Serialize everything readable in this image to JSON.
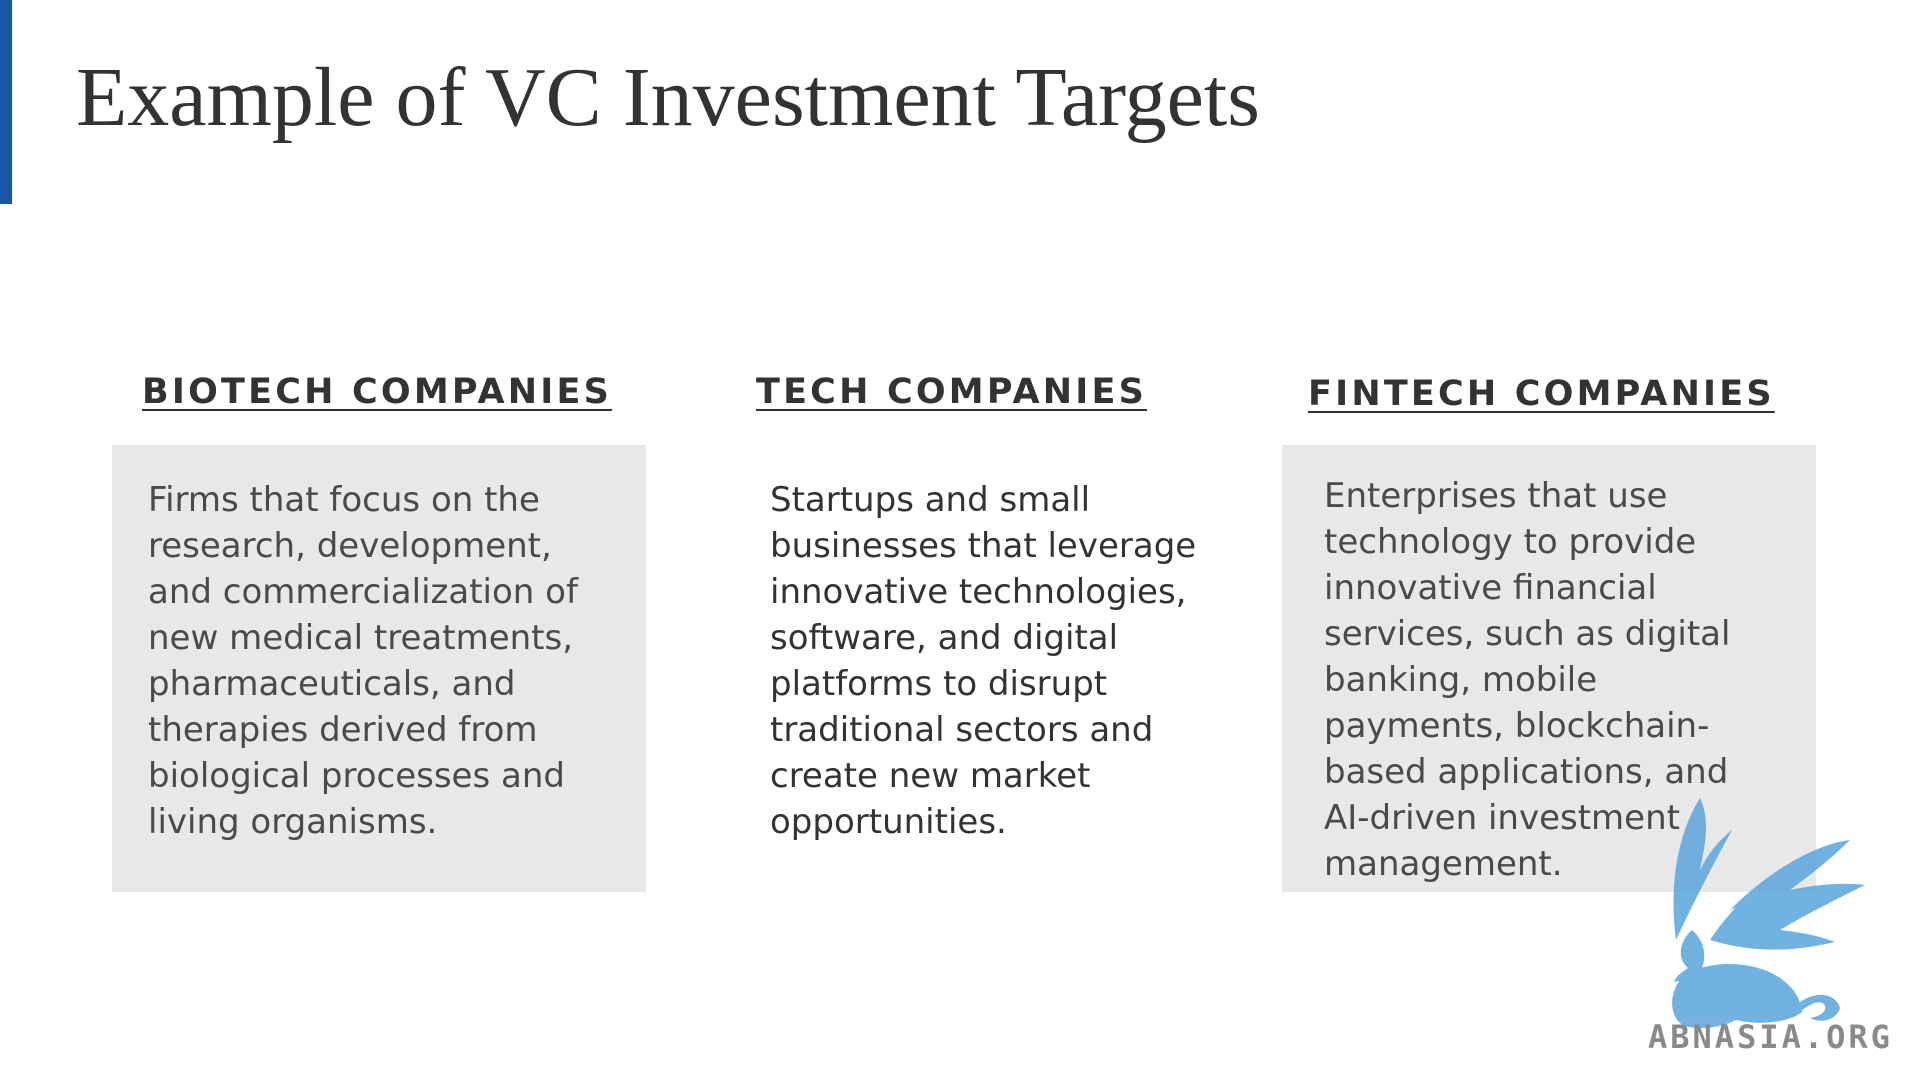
{
  "slide": {
    "title": "Example of VC Investment Targets",
    "accent_color": "#1a56a6"
  },
  "columns": [
    {
      "heading": "BIOTECH COMPANIES",
      "lines": [
        "Firms that focus on the",
        "research, development,",
        "and commercialization of",
        "new medical treatments,",
        "pharmaceuticals, and",
        "therapies derived from",
        "biological processes and",
        "living organisms."
      ]
    },
    {
      "heading": "TECH COMPANIES",
      "lines": [
        "Startups and small",
        "businesses that leverage",
        "innovative technologies,",
        "software, and digital",
        "platforms to disrupt",
        "traditional sectors and",
        "create new market",
        "opportunities."
      ]
    },
    {
      "heading": "FINTECH COMPANIES",
      "lines": [
        "Enterprises that use",
        "technology to provide",
        "innovative financial",
        "services, such as digital",
        "banking, mobile",
        "payments, blockchain-",
        "based applications, and",
        "AI-driven investment",
        "management."
      ]
    }
  ],
  "watermark": {
    "text": "ABNASIA.ORG",
    "icon": "griffin-logo-icon",
    "color": "#5aa5dc"
  }
}
